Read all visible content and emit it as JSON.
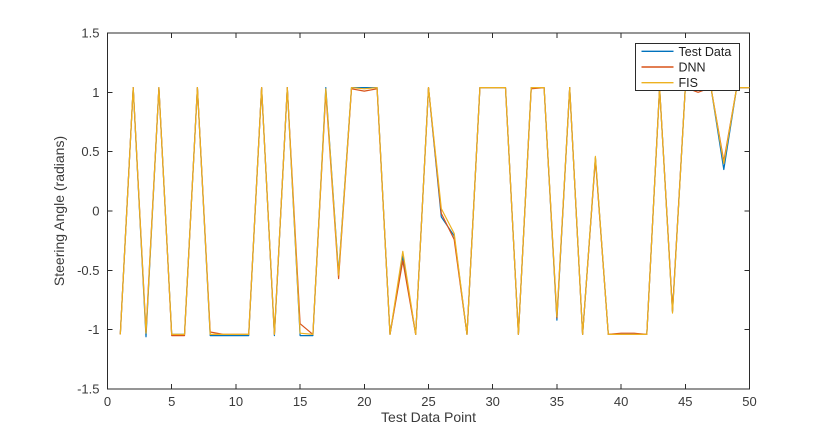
{
  "figure": {
    "background": "#ffffff",
    "axis_color": "#2b2b2b",
    "text_color": "#3a3a3a"
  },
  "chart_data": {
    "type": "line",
    "title": "",
    "xlabel": "Test Data Point",
    "ylabel": "Steering Angle (radians)",
    "xlim": [
      0,
      50
    ],
    "ylim": [
      -1.5,
      1.5
    ],
    "xticks": [
      0,
      5,
      10,
      15,
      20,
      25,
      30,
      35,
      40,
      45,
      50
    ],
    "yticks": [
      -1.5,
      -1,
      -0.5,
      0,
      0.5,
      1,
      1.5
    ],
    "ytick_labels": [
      "-1.5",
      "-1",
      "-0.5",
      "0",
      "0.5",
      "1",
      "1.5"
    ],
    "grid": false,
    "legend": {
      "position": "northeast",
      "border": true
    },
    "x": [
      1,
      2,
      3,
      4,
      5,
      6,
      7,
      8,
      9,
      10,
      11,
      12,
      13,
      14,
      15,
      16,
      17,
      18,
      19,
      20,
      21,
      22,
      23,
      24,
      25,
      26,
      27,
      28,
      29,
      30,
      31,
      32,
      33,
      34,
      35,
      36,
      37,
      38,
      39,
      40,
      41,
      42,
      43,
      44,
      45,
      46,
      47,
      48,
      49,
      50
    ],
    "series": [
      {
        "name": "Test Data",
        "color": "#0072BD",
        "values": [
          -1.04,
          1.04,
          -1.06,
          1.04,
          -1.04,
          -1.04,
          1.04,
          -1.05,
          -1.05,
          -1.05,
          -1.05,
          1.04,
          -1.05,
          1.04,
          -1.05,
          -1.05,
          1.04,
          -0.53,
          1.04,
          1.04,
          1.04,
          -1.04,
          -0.38,
          -1.04,
          1.04,
          -0.05,
          -0.21,
          -1.04,
          1.04,
          1.04,
          1.04,
          -1.04,
          1.04,
          1.04,
          -0.92,
          1.04,
          -1.04,
          0.45,
          -1.04,
          -1.04,
          -1.04,
          -1.04,
          1.04,
          -0.85,
          1.04,
          1.04,
          1.04,
          0.35,
          1.04,
          1.04
        ]
      },
      {
        "name": "DNN",
        "color": "#D95319",
        "values": [
          -1.04,
          1.04,
          -1.02,
          1.04,
          -1.05,
          -1.05,
          1.04,
          -1.02,
          -1.04,
          -1.04,
          -1.04,
          1.04,
          -1.04,
          1.04,
          -0.95,
          -1.04,
          1.0,
          -0.57,
          1.03,
          1.01,
          1.03,
          -1.04,
          -0.42,
          -1.04,
          1.04,
          -0.02,
          -0.24,
          -1.04,
          1.04,
          1.04,
          1.04,
          -1.04,
          1.03,
          1.04,
          -0.9,
          1.04,
          -1.04,
          0.44,
          -1.04,
          -1.03,
          -1.03,
          -1.04,
          1.04,
          -0.84,
          1.04,
          1.0,
          1.04,
          0.42,
          1.04,
          1.04
        ]
      },
      {
        "name": "FIS",
        "color": "#EDB120",
        "values": [
          -1.04,
          1.04,
          -1.03,
          1.04,
          -1.04,
          -1.04,
          1.04,
          -1.04,
          -1.04,
          -1.04,
          -1.04,
          1.04,
          -1.04,
          1.04,
          -1.03,
          -1.04,
          1.03,
          -0.54,
          1.04,
          1.03,
          1.04,
          -1.04,
          -0.34,
          -1.04,
          1.04,
          0.02,
          -0.19,
          -1.04,
          1.04,
          1.04,
          1.04,
          -1.04,
          1.04,
          1.04,
          -0.89,
          1.04,
          -1.04,
          0.46,
          -1.04,
          -1.04,
          -1.04,
          -1.04,
          1.04,
          -0.86,
          1.04,
          1.04,
          1.04,
          0.4,
          1.04,
          1.04
        ]
      }
    ]
  }
}
